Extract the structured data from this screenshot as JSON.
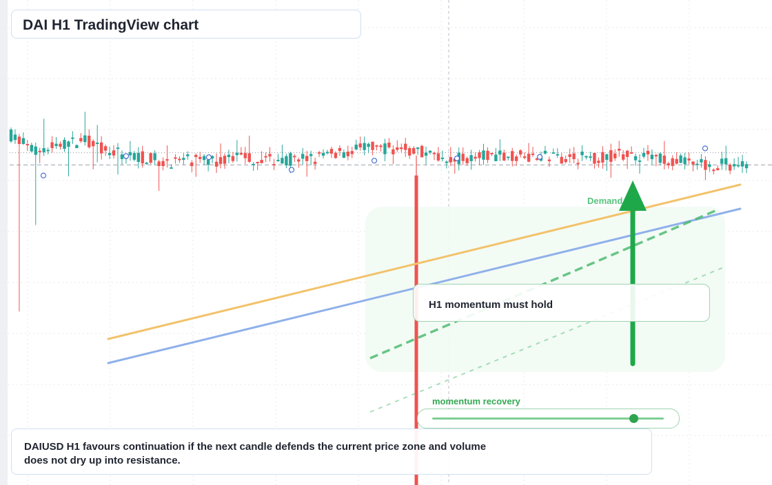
{
  "title": "DAI H1 TradingView chart",
  "annotations": {
    "momentum_card": "H1 momentum must hold",
    "zone_label": "Demand",
    "slider_label": "momentum recovery",
    "footer_text": "DAIUSD H1 favours continuation if the next candle defends the current price zone and volume does not dry up into resistance."
  },
  "slider": {
    "value": 0.87
  },
  "colors": {
    "bull": "#26a69a",
    "bear": "#ef5350",
    "trend_orange": "#f2c26a",
    "trend_blue": "#8fb0ea",
    "guide_green": "#45b86a",
    "arrow_green": "#1fa84a",
    "zone_fill": "#f2fbf4"
  },
  "chart_data": {
    "type": "candlestick",
    "symbol": "DAIUSD",
    "timeframe": "H1",
    "candles": [
      {
        "o": 1.00095,
        "h": 1.00338,
        "l": 0.99148,
        "c": 1.00072
      },
      {
        "o": 1.00072,
        "h": 1.00228,
        "l": 0.999,
        "c": 1.0001
      },
      {
        "o": 1.0001,
        "h": 1.00136,
        "l": 0.99928,
        "c": 1.00039
      },
      {
        "o": 1.00039,
        "h": 1.00114,
        "l": 0.99945,
        "c": 1.00054
      },
      {
        "o": 1.00054,
        "h": 1.00118,
        "l": 0.99883,
        "c": 1.00008
      },
      {
        "o": 1.00008,
        "h": 1.00108,
        "l": 0.99917,
        "c": 0.99997
      },
      {
        "o": 0.99997,
        "h": 1.00078,
        "l": 0.99901,
        "c": 0.9998
      },
      {
        "o": 0.9998,
        "h": 1.00059,
        "l": 0.99905,
        "c": 0.99982
      },
      {
        "o": 0.99982,
        "h": 1.00043,
        "l": 0.99913,
        "c": 0.99981
      },
      {
        "o": 0.99981,
        "h": 1.00048,
        "l": 0.99951,
        "c": 0.99997
      },
      {
        "o": 0.99997,
        "h": 1.00041,
        "l": 0.99962,
        "c": 0.99984
      },
      {
        "o": 0.99984,
        "h": 1.00041,
        "l": 0.99925,
        "c": 0.99986
      },
      {
        "o": 0.99986,
        "h": 1.00038,
        "l": 0.99928,
        "c": 0.99992
      },
      {
        "o": 0.99992,
        "h": 1.00046,
        "l": 0.9997,
        "c": 1.0001
      },
      {
        "o": 1.0001,
        "h": 1.00064,
        "l": 0.99951,
        "c": 1.00029
      },
      {
        "o": 1.00029,
        "h": 1.00076,
        "l": 0.99972,
        "c": 1.00025
      },
      {
        "o": 1.00025,
        "h": 1.00058,
        "l": 0.99893,
        "c": 1.00018
      },
      {
        "o": 1.00018,
        "h": 1.00042,
        "l": 0.99958,
        "c": 0.99994
      },
      {
        "o": 0.99994,
        "h": 1.00028,
        "l": 0.99938,
        "c": 0.9999
      },
      {
        "o": 0.9999,
        "h": 1.00026,
        "l": 0.99955,
        "c": 1.00001
      },
      {
        "o": 1.00001,
        "h": 1.00022,
        "l": 0.99984,
        "c": 1.00001
      },
      {
        "o": 1.00001,
        "h": 1.00015,
        "l": 0.99937,
        "c": 0.99997
      },
      {
        "o": 0.99997,
        "h": 1.00012,
        "l": 0.99925,
        "c": 0.99992
      },
      {
        "o": 0.99992,
        "h": 1.00009,
        "l": 0.99931,
        "c": 0.99993
      },
      {
        "o": 0.99993,
        "h": 1.00018,
        "l": 0.99957,
        "c": 1.00003
      },
      {
        "o": 1.00003,
        "h": 1.0005,
        "l": 0.9996,
        "c": 0.99998
      },
      {
        "o": 0.99998,
        "h": 1.00034,
        "l": 0.99939,
        "c": 0.99986
      },
      {
        "o": 0.99986,
        "h": 1.00006,
        "l": 0.99928,
        "c": 0.99967
      },
      {
        "o": 0.99967,
        "h": 1.00012,
        "l": 0.99918,
        "c": 0.99969
      },
      {
        "o": 0.99969,
        "h": 0.99997,
        "l": 0.9991,
        "c": 0.99966
      }
    ],
    "ref_level": 0.99967,
    "resistance_level": 1.0001
  }
}
